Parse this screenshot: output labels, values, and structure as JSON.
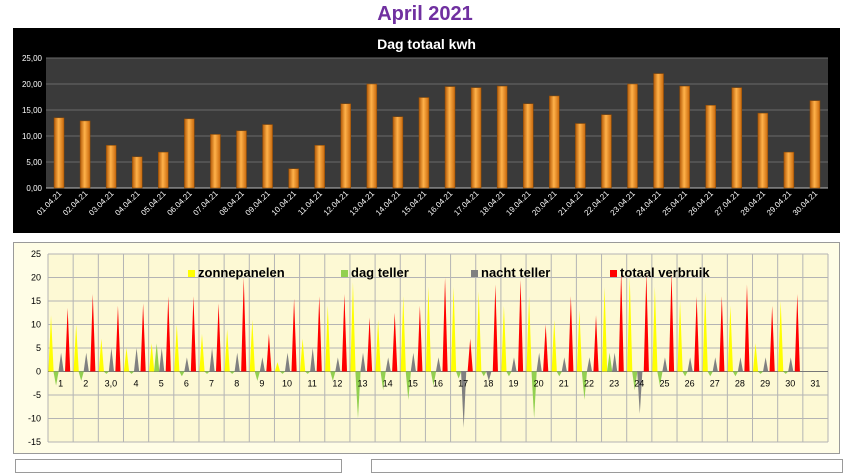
{
  "page": {
    "title": "April 2021"
  },
  "chart_data": [
    {
      "type": "bar",
      "title": "Dag totaal kwh",
      "xlabel": "",
      "ylabel": "",
      "ylim": [
        0,
        25
      ],
      "ytick_labels": [
        "0,00",
        "5,00",
        "10,00",
        "15,00",
        "20,00",
        "25,00"
      ],
      "grid": true,
      "categories": [
        "01.04.21",
        "02.04.21",
        "03.04.21",
        "04.04.21",
        "05.04.21",
        "06.04.21",
        "07.04.21",
        "08.04.21",
        "09.04.21",
        "10.04.21",
        "11.04.21",
        "12.04.21",
        "13.04.21",
        "14.04.21",
        "15.04.21",
        "16.04.21",
        "17.04.21",
        "18.04.21",
        "19.04.21",
        "20.04.21",
        "21.04.21",
        "22.04.21",
        "23.04.21",
        "24.04.21",
        "25.04.21",
        "26.04.21",
        "27.04.21",
        "28.04.21",
        "29.04.21",
        "30.04.21"
      ],
      "values": [
        13.5,
        12.9,
        8.2,
        6.0,
        6.9,
        13.3,
        10.3,
        11.0,
        12.2,
        3.7,
        8.2,
        16.2,
        20.0,
        13.7,
        17.4,
        19.5,
        19.3,
        19.6,
        16.2,
        17.7,
        12.4,
        14.1,
        20.0,
        22.0,
        19.6,
        15.9,
        19.3,
        14.4,
        6.9,
        16.8
      ],
      "colors": {
        "bar": "#f08a1e",
        "background": "#000000",
        "plot_area": "#3a3a3a",
        "text": "#ffffff",
        "grid": "#6a6a6a"
      }
    },
    {
      "type": "bar",
      "title": "",
      "xlabel": "",
      "ylabel": "",
      "ylim": [
        -15,
        25
      ],
      "ytick_labels": [
        "-15",
        "-10",
        "-5",
        "0",
        "5",
        "10",
        "15",
        "20",
        "25"
      ],
      "grid": true,
      "legend_position": "top",
      "categories": [
        "1",
        "2",
        "3,0",
        "4",
        "5",
        "6",
        "7",
        "8",
        "9",
        "10",
        "11",
        "12",
        "13",
        "14",
        "15",
        "16",
        "17",
        "18",
        "19",
        "20",
        "21",
        "22",
        "23",
        "24",
        "25",
        "26",
        "27",
        "28",
        "29",
        "30",
        "31"
      ],
      "series": [
        {
          "name": "zonnepanelen",
          "color": "#ffff00",
          "values": [
            12,
            10,
            7,
            5,
            6,
            10,
            8,
            9,
            11,
            2,
            7,
            14,
            19,
            11,
            16,
            18,
            18,
            17,
            14,
            16,
            11,
            13,
            18,
            20,
            18,
            15,
            17,
            14,
            6,
            15,
            0
          ]
        },
        {
          "name": "dag teller",
          "color": "#92d050",
          "values": [
            -3,
            -2,
            -0.5,
            -0.5,
            6,
            -1,
            -0.5,
            -0.5,
            -2,
            -0.5,
            -0.5,
            -2,
            -10,
            -4,
            -6,
            -3,
            -1.5,
            -1,
            -1,
            -10,
            -1,
            -6,
            4,
            -4,
            -3,
            -1,
            -1,
            -1,
            -0.5,
            -0.5,
            0
          ]
        },
        {
          "name": "nacht teller",
          "color": "#808080",
          "values": [
            4,
            4,
            5,
            5,
            5,
            3,
            5,
            4,
            3,
            4,
            5,
            3,
            4,
            3,
            4,
            3,
            -12,
            -2,
            3,
            4,
            3,
            3,
            4,
            -9,
            3,
            3,
            3,
            3,
            3,
            3,
            0
          ]
        },
        {
          "name": "totaal verbruik",
          "color": "#ff0000",
          "values": [
            13.5,
            16.5,
            14,
            14.5,
            16,
            16,
            14.5,
            20,
            8,
            15.5,
            16,
            16.5,
            11.5,
            12.5,
            14,
            20,
            7,
            18.5,
            19.5,
            10,
            16,
            12,
            21.5,
            21,
            21,
            16,
            16,
            18.5,
            14,
            16.5,
            0
          ]
        }
      ],
      "colors": {
        "background": "#fffde6",
        "plot_area": "#fdf9d4",
        "text": "#000000",
        "grid": "#b4b4b4"
      }
    }
  ]
}
